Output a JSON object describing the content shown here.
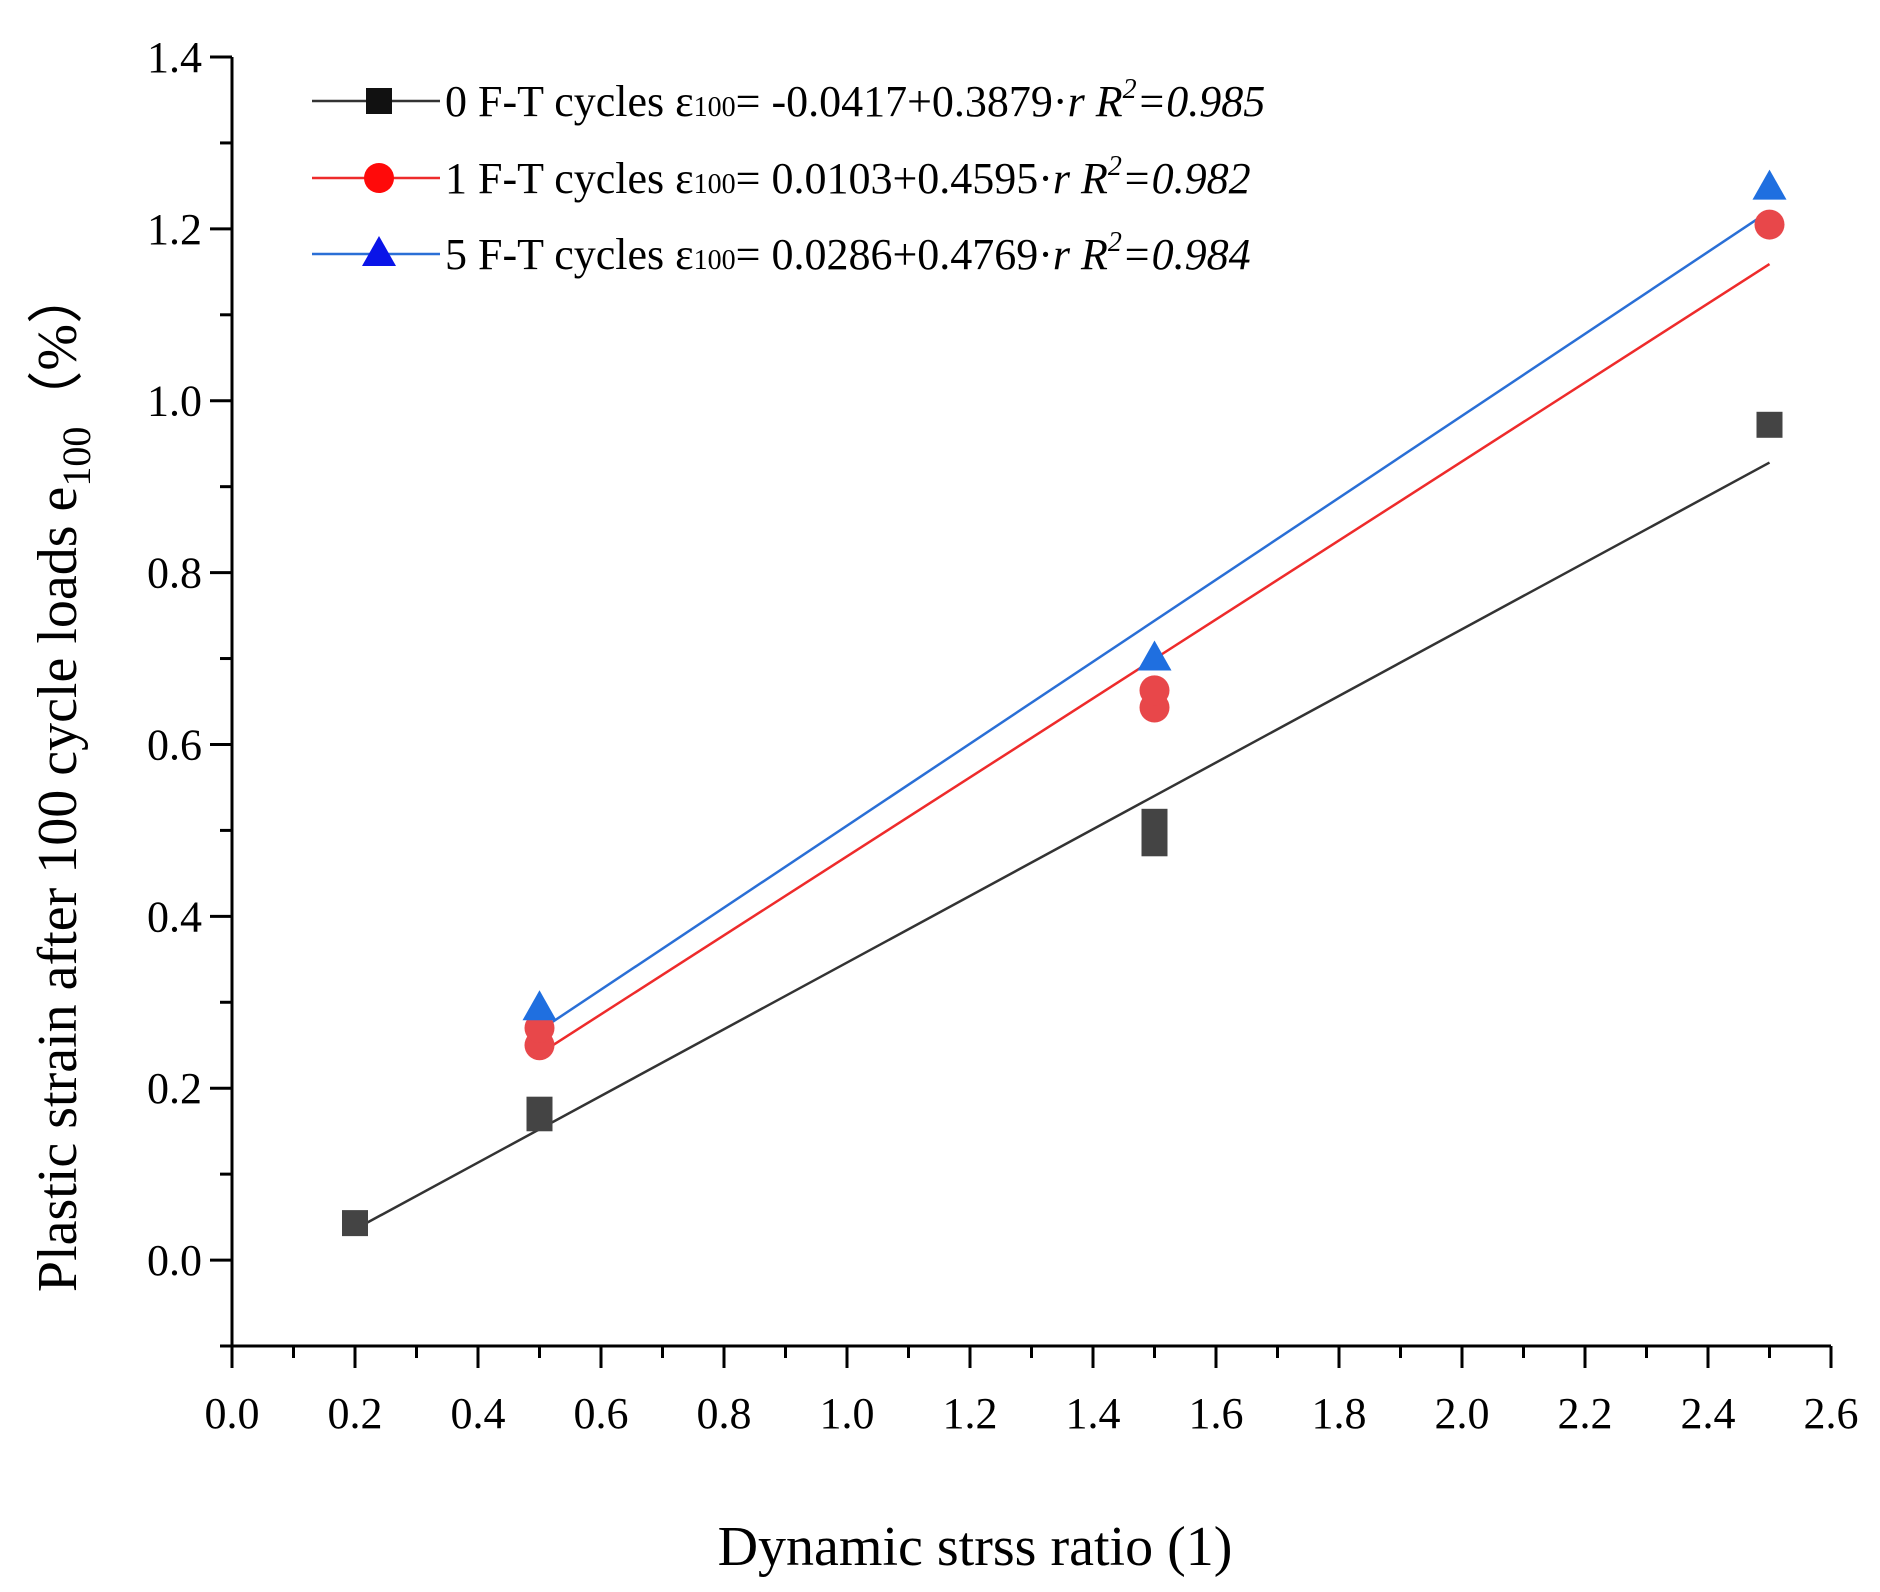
{
  "chart_data": {
    "type": "scatter",
    "title": "",
    "xlabel": "Dynamic strss ratio (1)",
    "ylabel": {
      "main": "Plastic strain after 100 cycle loads e",
      "subscript": "100",
      "unit": "（%）"
    },
    "xlim": [
      0.0,
      2.6
    ],
    "ylim": [
      -0.1,
      1.4
    ],
    "x_ticks": [
      "0.0",
      "0.2",
      "0.4",
      "0.6",
      "0.8",
      "1.0",
      "1.2",
      "1.4",
      "1.6",
      "1.8",
      "2.0",
      "2.2",
      "2.4",
      "2.6"
    ],
    "y_ticks": [
      "0.0",
      "0.2",
      "0.4",
      "0.6",
      "0.8",
      "1.0",
      "1.2",
      "1.4"
    ],
    "grid": false,
    "legend_position": "top-left",
    "series": [
      {
        "name": "0 F-T cycles",
        "marker": "square",
        "color": "#444444",
        "line_color": "#333333",
        "legend_marker_color": "#111111",
        "points": [
          [
            0.2,
            0.043
          ],
          [
            0.5,
            0.165
          ],
          [
            0.5,
            0.175
          ],
          [
            1.5,
            0.485
          ],
          [
            1.5,
            0.51
          ],
          [
            2.5,
            0.972
          ]
        ],
        "fit": {
          "intercept": -0.0417,
          "slope": 0.3879,
          "x_range": [
            0.2,
            2.5
          ]
        },
        "legend_eq": {
          "prefix": "0 F-T cycles ",
          "eps": "ε",
          "eps_sub": "100",
          "body": "= -0.0417+0.3879·",
          "var": "r",
          "r2_label": " R",
          "r2_sup": "2",
          "r2_value": "=0.985"
        }
      },
      {
        "name": "1 F-T cycles",
        "marker": "circle",
        "color": "#e8474a",
        "line_color": "#ee2b2b",
        "legend_marker_color": "#ff0a0a",
        "points": [
          [
            0.5,
            0.25
          ],
          [
            0.5,
            0.27
          ],
          [
            1.5,
            0.643
          ],
          [
            1.5,
            0.663
          ],
          [
            2.5,
            1.205
          ]
        ],
        "fit": {
          "intercept": 0.0103,
          "slope": 0.4595,
          "x_range": [
            0.5,
            2.5
          ]
        },
        "legend_eq": {
          "prefix": "1 F-T cycles ",
          "eps": "ε",
          "eps_sub": "100",
          "body": "= 0.0103+0.4595·",
          "var": "r",
          "r2_label": " R",
          "r2_sup": "2",
          "r2_value": "=0.982"
        }
      },
      {
        "name": "5 F-T cycles",
        "marker": "triangle",
        "color": "#1f6fe0",
        "line_color": "#2a6fd6",
        "legend_marker_color": "#0a14e8",
        "points": [
          [
            0.5,
            0.293
          ],
          [
            1.5,
            0.7
          ],
          [
            2.5,
            1.248
          ]
        ],
        "fit": {
          "intercept": 0.0286,
          "slope": 0.4769,
          "x_range": [
            0.5,
            2.5
          ]
        },
        "legend_eq": {
          "prefix": "5 F-T cycles ",
          "eps": "ε",
          "eps_sub": "100",
          "body": "= 0.0286+0.4769·",
          "var": "r",
          "r2_label": " R",
          "r2_sup": "2",
          "r2_value": "=0.984"
        }
      }
    ]
  }
}
